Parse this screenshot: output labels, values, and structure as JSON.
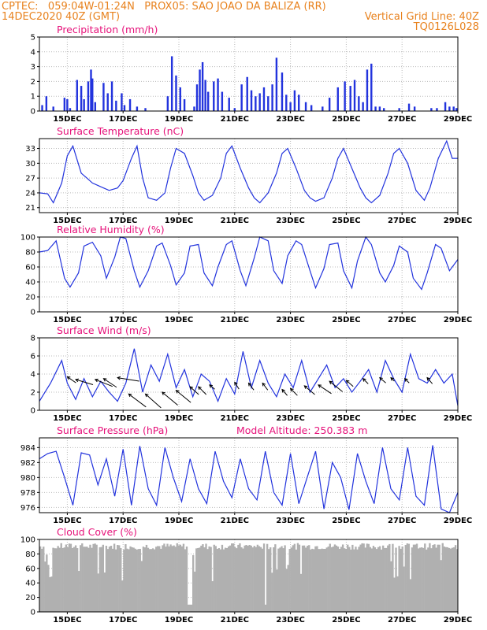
{
  "header": {
    "line1_left": "CPTEC:   059:04W-01:24N   PROX05: SAO JOAO DA BALIZA (RR)",
    "line2_left": "14DEC2020 40Z (GMT)",
    "line2_right": "Vertical Grid Line: 40Z",
    "line3_right": "TQ0126L028"
  },
  "colors": {
    "line": "#2233dd",
    "title": "#e6127a",
    "header": "#e8821e",
    "cloud": "#b0b0b0",
    "grid": "#bbbbbb"
  },
  "x_axis": {
    "start": "14DEC2020 12Z",
    "end": "29DEC2020 00Z",
    "tick_labels": [
      "15DEC",
      "17DEC",
      "19DEC",
      "21DEC",
      "23DEC",
      "25DEC",
      "27DEC",
      "29DEC"
    ],
    "tick_days": [
      1,
      3,
      5,
      7,
      9,
      11,
      13,
      15
    ]
  },
  "chart_data": [
    {
      "type": "bar",
      "title": "Precipitation (mm/h)",
      "ylim": [
        0,
        5
      ],
      "yticks": [
        0,
        1,
        2,
        3,
        4,
        5
      ],
      "x_days": [
        0.1,
        0.25,
        0.5,
        0.9,
        1.0,
        1.1,
        1.35,
        1.5,
        1.6,
        1.75,
        1.85,
        1.9,
        2.0,
        2.3,
        2.45,
        2.6,
        2.75,
        2.95,
        3.05,
        3.25,
        3.5,
        3.8,
        4.6,
        4.75,
        4.9,
        5.05,
        5.2,
        5.55,
        5.65,
        5.75,
        5.85,
        5.95,
        6.05,
        6.25,
        6.4,
        6.55,
        6.8,
        7.0,
        7.25,
        7.45,
        7.6,
        7.75,
        7.9,
        8.05,
        8.2,
        8.35,
        8.5,
        8.7,
        8.85,
        9.0,
        9.15,
        9.3,
        9.55,
        9.75,
        10.15,
        10.4,
        10.7,
        10.95,
        11.15,
        11.3,
        11.45,
        11.6,
        11.75,
        11.9,
        12.05,
        12.2,
        12.35,
        12.9,
        13.25,
        13.45,
        14.05,
        14.25,
        14.55,
        14.7,
        14.85,
        14.95
      ],
      "values": [
        0.4,
        1.0,
        0.3,
        0.9,
        0.8,
        0.2,
        2.1,
        1.7,
        0.8,
        2.0,
        2.8,
        2.2,
        0.6,
        1.9,
        1.2,
        2.0,
        0.7,
        1.2,
        0.4,
        0.8,
        0.3,
        0.2,
        1.0,
        3.7,
        2.4,
        1.6,
        0.8,
        0.3,
        1.8,
        2.8,
        3.3,
        2.1,
        1.3,
        2.0,
        2.2,
        1.3,
        0.9,
        0.2,
        1.8,
        2.3,
        1.4,
        1.0,
        1.2,
        1.6,
        1.0,
        1.8,
        3.6,
        2.6,
        1.1,
        0.6,
        1.4,
        1.1,
        0.6,
        0.4,
        0.3,
        0.9,
        1.6,
        2.0,
        1.7,
        2.1,
        1.0,
        0.6,
        2.8,
        3.2,
        0.3,
        0.3,
        0.2,
        0.2,
        0.5,
        0.3,
        0.2,
        0.2,
        0.6,
        0.3,
        0.3,
        0.2
      ]
    },
    {
      "type": "line",
      "title": "Surface Temperature (nC)",
      "ylim": [
        20,
        35
      ],
      "yticks": [
        21,
        24,
        27,
        30,
        33
      ],
      "x_days": [
        0,
        0.3,
        0.5,
        0.8,
        1.0,
        1.2,
        1.5,
        1.7,
        1.9,
        2.3,
        2.5,
        2.8,
        3.0,
        3.3,
        3.5,
        3.7,
        3.9,
        4.2,
        4.5,
        4.7,
        4.9,
        5.2,
        5.5,
        5.7,
        5.9,
        6.2,
        6.5,
        6.7,
        6.9,
        7.2,
        7.5,
        7.7,
        7.9,
        8.2,
        8.5,
        8.7,
        8.9,
        9.2,
        9.5,
        9.7,
        9.9,
        10.2,
        10.5,
        10.7,
        10.9,
        11.2,
        11.5,
        11.7,
        11.9,
        12.2,
        12.5,
        12.7,
        12.9,
        13.2,
        13.5,
        13.8,
        14.0,
        14.3,
        14.6,
        14.8,
        15.0
      ],
      "values": [
        24,
        23.8,
        22,
        26,
        31.5,
        33.5,
        28,
        27,
        26,
        25,
        24.5,
        25,
        26.5,
        31,
        33.5,
        27,
        23,
        22.5,
        24,
        29,
        33,
        32,
        27.5,
        24,
        22.5,
        23.5,
        27,
        32,
        33.5,
        29,
        25,
        23,
        22,
        24,
        28,
        32,
        33,
        29,
        24.5,
        23,
        22.3,
        23,
        27,
        31,
        33,
        29,
        25,
        23,
        22,
        23.5,
        28,
        32,
        33,
        30,
        24.5,
        22.5,
        25,
        31,
        34.5,
        31,
        31
      ]
    },
    {
      "type": "line",
      "title": "Relative Humidity (%)",
      "ylim": [
        0,
        100
      ],
      "yticks": [
        0,
        20,
        40,
        60,
        80,
        100
      ],
      "x_days": [
        0,
        0.3,
        0.6,
        0.9,
        1.1,
        1.4,
        1.6,
        1.9,
        2.2,
        2.4,
        2.7,
        2.9,
        3.1,
        3.4,
        3.6,
        3.9,
        4.2,
        4.4,
        4.7,
        4.9,
        5.2,
        5.4,
        5.7,
        5.9,
        6.2,
        6.4,
        6.7,
        6.9,
        7.2,
        7.4,
        7.7,
        7.9,
        8.2,
        8.4,
        8.7,
        8.9,
        9.2,
        9.4,
        9.7,
        9.9,
        10.2,
        10.4,
        10.7,
        10.9,
        11.2,
        11.4,
        11.7,
        11.9,
        12.2,
        12.4,
        12.7,
        12.9,
        13.2,
        13.4,
        13.7,
        13.9,
        14.2,
        14.4,
        14.7,
        15.0
      ],
      "values": [
        80,
        82,
        95,
        45,
        33,
        52,
        88,
        93,
        75,
        45,
        73,
        100,
        98,
        55,
        33,
        55,
        88,
        92,
        62,
        36,
        52,
        88,
        90,
        52,
        35,
        60,
        90,
        95,
        55,
        35,
        72,
        100,
        95,
        55,
        38,
        75,
        95,
        90,
        55,
        32,
        58,
        90,
        92,
        55,
        32,
        68,
        100,
        90,
        52,
        40,
        62,
        88,
        80,
        45,
        30,
        52,
        90,
        85,
        55,
        70
      ]
    },
    {
      "type": "line",
      "title": "Surface Wind (m/s)",
      "ylim": [
        0,
        8
      ],
      "yticks": [
        0,
        2,
        4,
        6,
        8
      ],
      "x_days": [
        0,
        0.4,
        0.8,
        1.0,
        1.3,
        1.6,
        1.9,
        2.2,
        2.5,
        2.8,
        3.1,
        3.4,
        3.7,
        4.0,
        4.3,
        4.6,
        4.9,
        5.2,
        5.5,
        5.8,
        6.1,
        6.4,
        6.7,
        7.0,
        7.3,
        7.6,
        7.9,
        8.2,
        8.5,
        8.8,
        9.1,
        9.4,
        9.7,
        10.0,
        10.3,
        10.6,
        10.9,
        11.2,
        11.5,
        11.8,
        12.1,
        12.4,
        12.7,
        13.0,
        13.3,
        13.6,
        13.9,
        14.2,
        14.5,
        14.8,
        15.0
      ],
      "values": [
        1.0,
        3.0,
        5.5,
        3.0,
        1.2,
        3.5,
        1.5,
        3.2,
        2.0,
        1.0,
        3.0,
        6.8,
        2.0,
        5.0,
        3.2,
        6.2,
        2.5,
        4.5,
        1.5,
        4.0,
        3.2,
        1.0,
        3.5,
        1.8,
        6.5,
        2.5,
        5.5,
        3.0,
        1.5,
        4.0,
        2.5,
        5.5,
        2.0,
        3.5,
        5.0,
        2.5,
        3.5,
        2.0,
        3.2,
        4.5,
        2.0,
        5.5,
        3.5,
        2.0,
        6.2,
        3.5,
        3.0,
        4.5,
        3.0,
        4.0,
        0.5
      ],
      "arrows": [
        [
          1.0,
          3.7,
          1.0,
          -0.7
        ],
        [
          1.3,
          3.4,
          2.0,
          -0.6
        ],
        [
          2.0,
          3.4,
          2.0,
          -0.8
        ],
        [
          2.3,
          3.5,
          1.5,
          -1.0
        ],
        [
          2.8,
          3.6,
          2.5,
          -0.4
        ],
        [
          3.2,
          1.8,
          2.0,
          -1.5
        ],
        [
          3.8,
          1.8,
          1.8,
          -1.6
        ],
        [
          4.4,
          2.0,
          1.8,
          -1.5
        ],
        [
          4.9,
          2.2,
          1.7,
          -1.4
        ],
        [
          5.4,
          2.6,
          1.0,
          -0.9
        ],
        [
          5.7,
          2.6,
          0.9,
          -0.9
        ],
        [
          6.1,
          2.8,
          0.6,
          -0.5
        ],
        [
          7.0,
          3.1,
          0.5,
          -0.8
        ],
        [
          7.5,
          3.0,
          0.6,
          -0.8
        ],
        [
          8.0,
          3.0,
          0.6,
          -0.8
        ],
        [
          8.7,
          2.3,
          0.6,
          -0.7
        ],
        [
          9.0,
          2.4,
          0.8,
          -0.8
        ],
        [
          9.5,
          2.7,
          1.2,
          -1.0
        ],
        [
          10.0,
          2.8,
          1.5,
          -1.0
        ],
        [
          10.4,
          3.2,
          1.5,
          -1.2
        ],
        [
          11.0,
          3.3,
          0.8,
          -0.7
        ],
        [
          11.6,
          3.5,
          0.6,
          -0.6
        ],
        [
          12.2,
          3.6,
          0.7,
          -0.6
        ],
        [
          12.6,
          3.6,
          0.4,
          -0.4
        ],
        [
          13.1,
          3.5,
          0.5,
          -0.5
        ],
        [
          13.9,
          3.6,
          0.6,
          -0.7
        ]
      ]
    },
    {
      "type": "line",
      "title": "Surface Pressure (hPa)",
      "annotation": "Model Altitude: 250.383 m",
      "ylim": [
        975.3,
        985.3
      ],
      "yticks": [
        976,
        978,
        980,
        982,
        984
      ],
      "x_days": [
        0,
        0.3,
        0.6,
        0.9,
        1.2,
        1.5,
        1.8,
        2.1,
        2.4,
        2.7,
        3.0,
        3.3,
        3.6,
        3.9,
        4.2,
        4.5,
        4.8,
        5.1,
        5.4,
        5.7,
        6.0,
        6.3,
        6.6,
        6.9,
        7.2,
        7.5,
        7.8,
        8.1,
        8.4,
        8.7,
        9.0,
        9.3,
        9.6,
        9.9,
        10.2,
        10.5,
        10.8,
        11.1,
        11.4,
        11.7,
        12.0,
        12.3,
        12.6,
        12.9,
        13.2,
        13.5,
        13.8,
        14.1,
        14.4,
        14.7,
        15.0
      ],
      "values": [
        982.5,
        983.2,
        983.5,
        980,
        976.3,
        983.3,
        983,
        979,
        982.5,
        977.5,
        983.8,
        976.3,
        984.2,
        978.5,
        976.3,
        984,
        980,
        976.8,
        982.5,
        978.5,
        976.5,
        983.5,
        979.5,
        977.3,
        982.5,
        978.5,
        977,
        983.5,
        978,
        976.3,
        983.2,
        976.5,
        980,
        983.5,
        975.8,
        982,
        980,
        975.7,
        983.2,
        979.5,
        976.5,
        984,
        978.5,
        977,
        984,
        977.5,
        976.3,
        984.3,
        975.8,
        975.3,
        978
      ]
    },
    {
      "type": "bar",
      "title": "Cloud Cover (%)",
      "ylim": [
        0,
        100
      ],
      "yticks": [
        0,
        20,
        40,
        60,
        80,
        100
      ]
    }
  ]
}
